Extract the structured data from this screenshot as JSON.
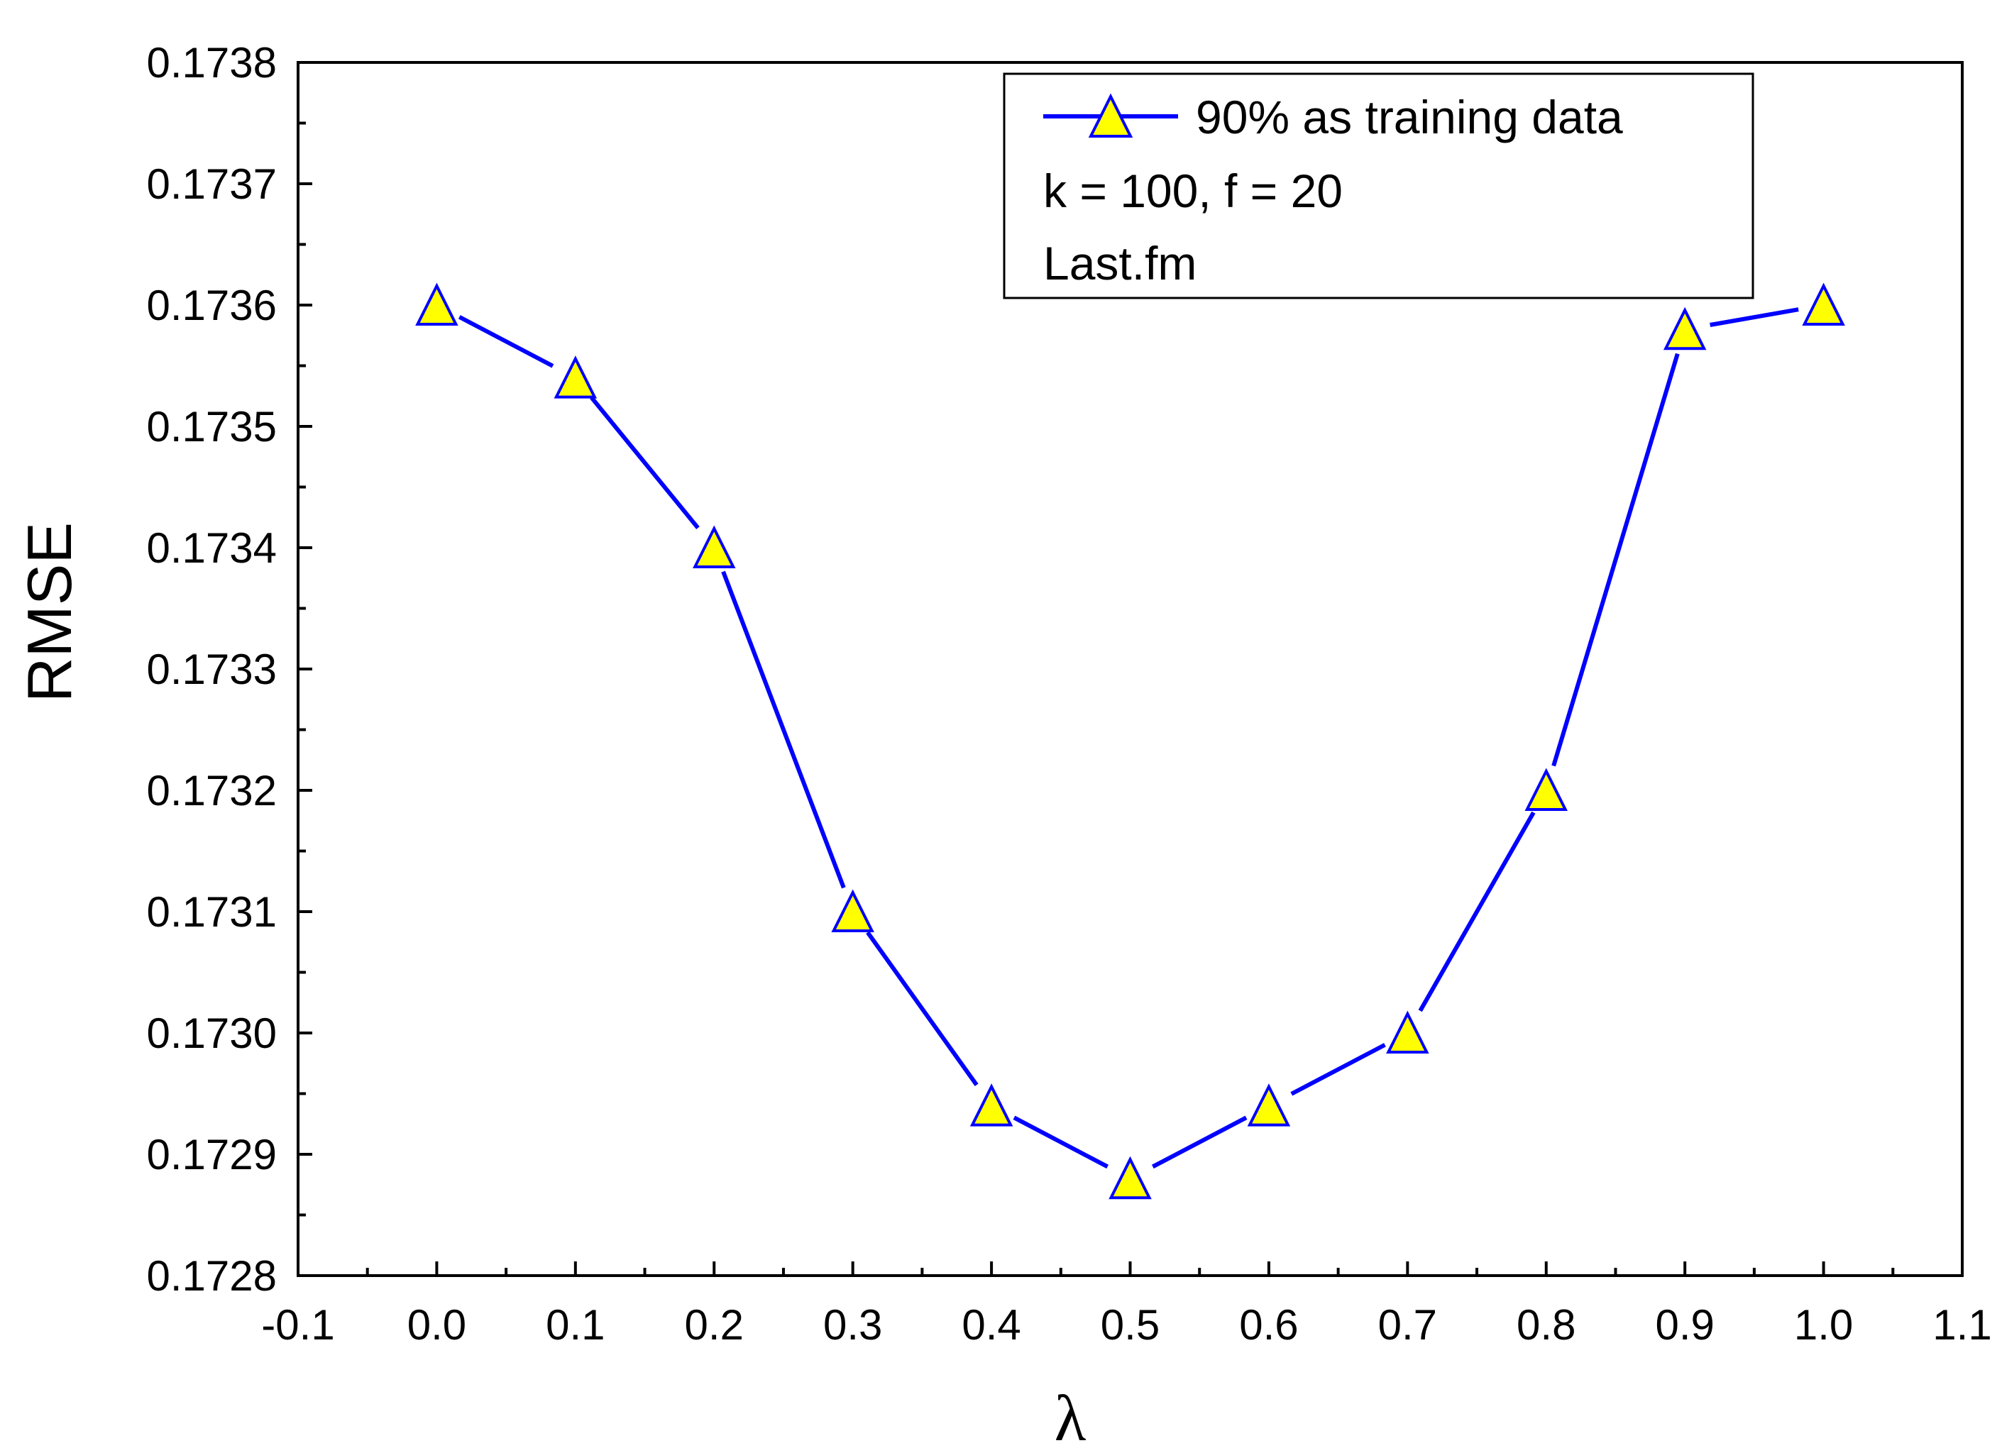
{
  "chart_data": {
    "type": "line",
    "title": "",
    "xlabel": "λ",
    "ylabel": "RMSE",
    "xlim": [
      -0.1,
      1.1
    ],
    "ylim": [
      0.1728,
      0.1738
    ],
    "x_ticks": [
      "-0.1",
      "0.0",
      "0.1",
      "0.2",
      "0.3",
      "0.4",
      "0.5",
      "0.6",
      "0.7",
      "0.8",
      "0.9",
      "1.0",
      "1.1"
    ],
    "y_ticks": [
      "0.1728",
      "0.1729",
      "0.1730",
      "0.1731",
      "0.1732",
      "0.1733",
      "0.1734",
      "0.1735",
      "0.1736",
      "0.1737",
      "0.1738"
    ],
    "grid": false,
    "legend_position": "top-right",
    "series": [
      {
        "name": "90% as training data",
        "color": "#0000ff",
        "marker": "triangle",
        "marker_color": "#ffff00",
        "x": [
          0.0,
          0.1,
          0.2,
          0.3,
          0.4,
          0.5,
          0.6,
          0.7,
          0.8,
          0.9,
          1.0
        ],
        "y": [
          0.1736,
          0.17354,
          0.1734,
          0.1731,
          0.17294,
          0.17288,
          0.17294,
          0.173,
          0.1732,
          0.17358,
          0.1736
        ]
      }
    ],
    "annotations": [
      "k = 100, f = 20",
      "Last.fm"
    ]
  }
}
